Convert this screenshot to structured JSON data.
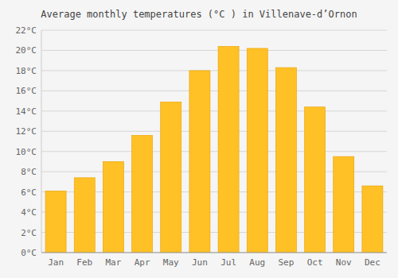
{
  "chart_data": {
    "type": "bar",
    "title": "Average monthly temperatures (°C ) in Villenave-d’Ornon",
    "categories": [
      "Jan",
      "Feb",
      "Mar",
      "Apr",
      "May",
      "Jun",
      "Jul",
      "Aug",
      "Sep",
      "Oct",
      "Nov",
      "Dec"
    ],
    "values": [
      6.1,
      7.4,
      9.0,
      11.6,
      14.9,
      18.0,
      20.4,
      20.2,
      18.3,
      14.4,
      9.5,
      6.6
    ],
    "color": "#FFC125",
    "ylim": [
      0,
      22
    ],
    "yticks": [
      {
        "value": 0,
        "label": "0°C"
      },
      {
        "value": 2,
        "label": "2°C"
      },
      {
        "value": 4,
        "label": "4°C"
      },
      {
        "value": 6,
        "label": "6°C"
      },
      {
        "value": 8,
        "label": "8°C"
      },
      {
        "value": 10,
        "label": "10°C"
      },
      {
        "value": 12,
        "label": "12°C"
      },
      {
        "value": 14,
        "label": "14°C"
      },
      {
        "value": 16,
        "label": "16°C"
      },
      {
        "value": 18,
        "label": "18°C"
      },
      {
        "value": 20,
        "label": "20°C"
      },
      {
        "value": 22,
        "label": "22°C"
      }
    ],
    "grid": true
  }
}
